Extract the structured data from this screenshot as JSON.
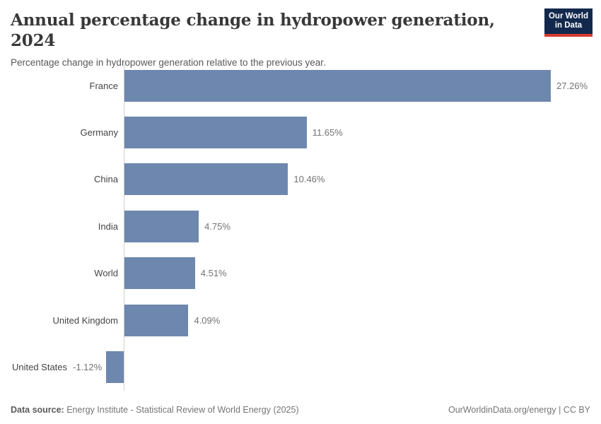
{
  "header": {
    "title": "Annual percentage change in hydropower generation, 2024",
    "subtitle": "Percentage change in hydropower generation relative to the previous year."
  },
  "logo": {
    "line1": "Our World",
    "line2": "in Data",
    "bg_color": "#12294d",
    "underline_color": "#d93a2d"
  },
  "chart_data": {
    "type": "bar",
    "orientation": "horizontal",
    "title": "Annual percentage change in hydropower generation, 2024",
    "categories": [
      "France",
      "Germany",
      "China",
      "India",
      "World",
      "United Kingdom",
      "United States"
    ],
    "values": [
      27.26,
      11.65,
      10.46,
      4.75,
      4.51,
      4.09,
      -1.12
    ],
    "value_labels": [
      "27.26%",
      "11.65%",
      "10.46%",
      "4.75%",
      "4.51%",
      "4.09%",
      "-1.12%"
    ],
    "unit": "%",
    "bar_color": "#6e87ae",
    "axis_color": "#cfcfcf",
    "xlim": [
      -1.12,
      27.26
    ],
    "grid": false,
    "legend": "none"
  },
  "footer": {
    "source_label": "Data source:",
    "source_text": "Energy Institute - Statistical Review of World Energy (2025)",
    "credit": "OurWorldinData.org/energy | CC BY"
  }
}
